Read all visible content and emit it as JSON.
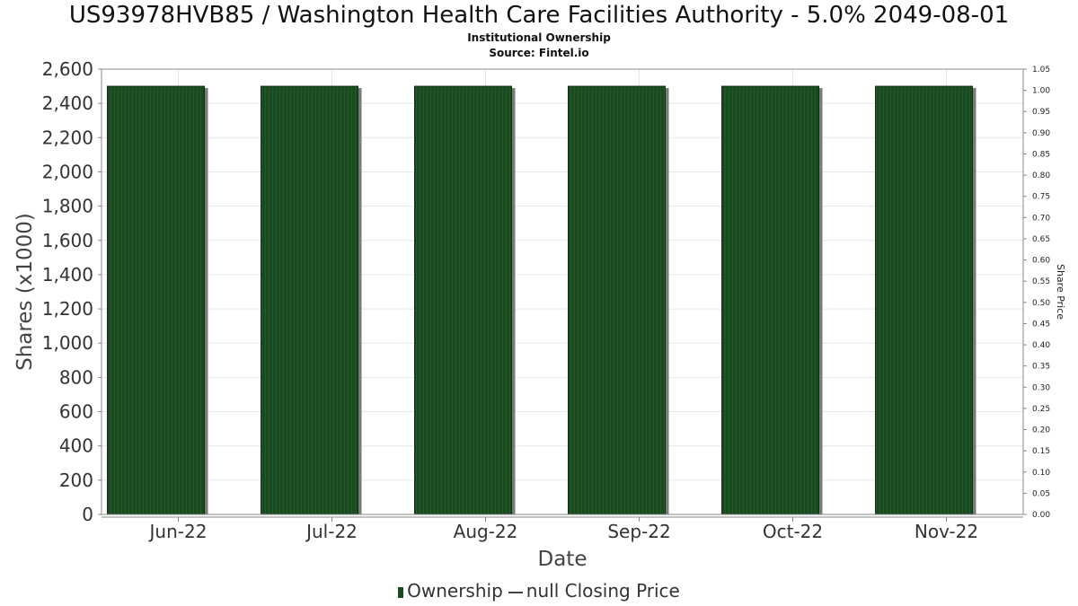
{
  "title": "US93978HVB85 / Washington Health Care Facilities Authority - 5.0% 2049-08-01",
  "subtitle": "Institutional Ownership",
  "source": "Source: Fintel.io",
  "legend": {
    "ownership_label": "Ownership",
    "price_label": "null Closing Price"
  },
  "colors": {
    "bar": "#1a4a1f",
    "bar_shadow": "#7a7a7a",
    "grid": "#e6e6e6",
    "axis": "#888888"
  },
  "chart_data": {
    "type": "bar",
    "categories": [
      "Jun-22",
      "Jul-22",
      "Aug-22",
      "Sep-22",
      "Oct-22",
      "Nov-22"
    ],
    "series": [
      {
        "name": "Ownership",
        "values": [
          2500,
          2500,
          2500,
          2500,
          2500,
          2500
        ]
      }
    ],
    "xlabel": "Date",
    "ylabel": "Shares (x1000)",
    "ylim": [
      0,
      2600
    ],
    "yticks": [
      0,
      200,
      400,
      600,
      800,
      1000,
      1200,
      1400,
      1600,
      1800,
      2000,
      2200,
      2400,
      2600
    ],
    "y2label": "Share Price",
    "y2lim": [
      0,
      1.05
    ],
    "y2ticks": [
      0.0,
      0.05,
      0.1,
      0.15,
      0.2,
      0.25,
      0.3,
      0.35,
      0.4,
      0.45,
      0.5,
      0.55,
      0.6,
      0.65,
      0.7,
      0.75,
      0.8,
      0.85,
      0.9,
      0.95,
      1.0,
      1.05
    ],
    "grid": true
  }
}
